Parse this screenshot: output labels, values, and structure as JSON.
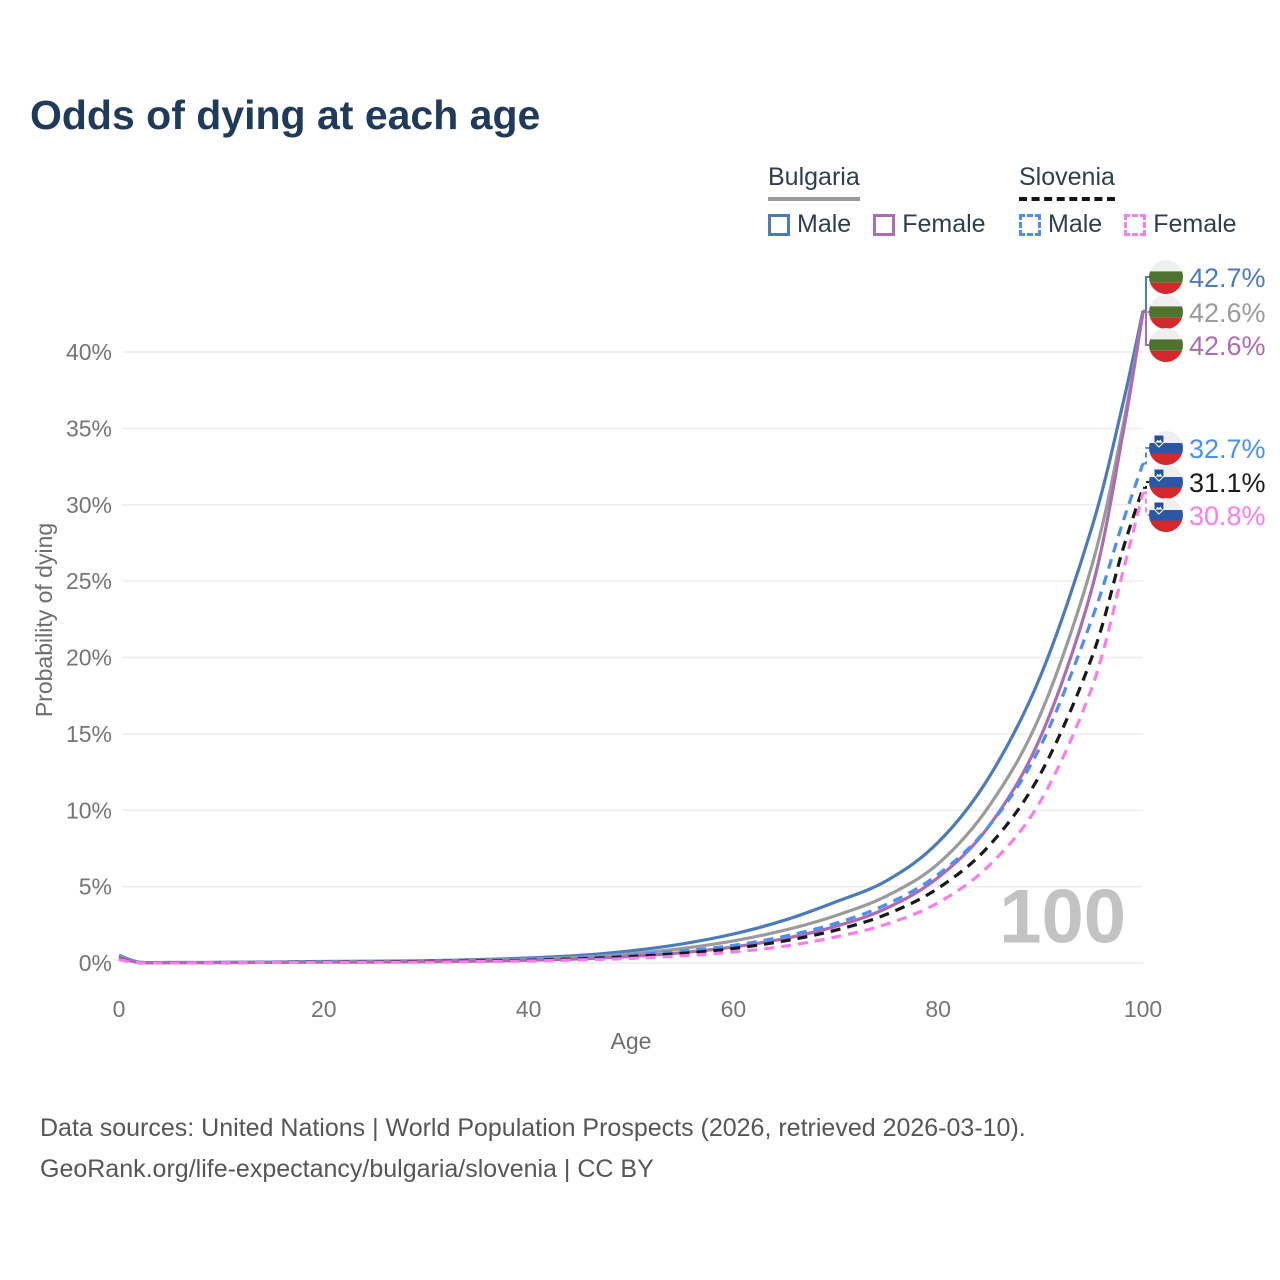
{
  "title": "Odds of dying at each age",
  "legend": {
    "groups": [
      {
        "label": "Bulgaria",
        "line_style": "solid",
        "underline_color": "#9b9b9b",
        "items": [
          {
            "label": "Male",
            "color": "#4b7bbe"
          },
          {
            "label": "Female",
            "color": "#ad6cb2"
          }
        ]
      },
      {
        "label": "Slovenia",
        "line_style": "dashed",
        "underline_color": "#141414",
        "items": [
          {
            "label": "Male",
            "color": "#4b8ff5"
          },
          {
            "label": "Female",
            "color": "#fb7de8"
          }
        ]
      }
    ]
  },
  "chart_data": {
    "type": "line",
    "title": "Odds of dying at each age",
    "xlabel": "Age",
    "ylabel": "Probability of dying",
    "xlim": [
      0,
      100
    ],
    "ylim_percent": [
      0,
      44
    ],
    "x_ticks": [
      0,
      20,
      40,
      60,
      80,
      100
    ],
    "y_ticks_percent": [
      0,
      5,
      10,
      15,
      20,
      25,
      30,
      35,
      40
    ],
    "grid": "horizontal-only",
    "legend_position": "top-right",
    "watermark": "100",
    "ages": [
      0,
      2,
      5,
      10,
      15,
      20,
      25,
      30,
      35,
      40,
      45,
      50,
      55,
      60,
      65,
      70,
      75,
      80,
      85,
      90,
      95,
      98,
      100
    ],
    "series": [
      {
        "name": "Bulgaria Male",
        "country": "Bulgaria",
        "flag": "bulgaria",
        "color": "#4b7bbe",
        "dashed": false,
        "end_label": "42.7%",
        "values_percent": [
          0.5,
          0.05,
          0.03,
          0.04,
          0.06,
          0.1,
          0.12,
          0.15,
          0.22,
          0.33,
          0.5,
          0.8,
          1.25,
          1.9,
          2.8,
          4.0,
          5.4,
          7.9,
          12.2,
          18.8,
          28.5,
          36.5,
          42.7
        ]
      },
      {
        "name": "Bulgaria",
        "country": "Bulgaria",
        "flag": "bulgaria",
        "color": "#9b9b9b",
        "dashed": false,
        "end_label": "42.6%",
        "values_percent": [
          0.42,
          0.04,
          0.03,
          0.03,
          0.05,
          0.08,
          0.1,
          0.12,
          0.17,
          0.25,
          0.38,
          0.6,
          0.95,
          1.45,
          2.15,
          3.1,
          4.4,
          6.5,
          10.3,
          16.3,
          26.0,
          35.0,
          42.6
        ]
      },
      {
        "name": "Bulgaria Female",
        "country": "Bulgaria",
        "flag": "bulgaria",
        "color": "#ad6cb2",
        "dashed": false,
        "end_label": "42.6%",
        "values_percent": [
          0.38,
          0.03,
          0.02,
          0.03,
          0.04,
          0.05,
          0.06,
          0.08,
          0.12,
          0.18,
          0.27,
          0.43,
          0.68,
          1.05,
          1.6,
          2.4,
          3.6,
          5.6,
          9.0,
          14.8,
          24.5,
          34.5,
          42.6
        ]
      },
      {
        "name": "Slovenia Male",
        "country": "Slovenia",
        "flag": "slovenia",
        "color": "#4b8ff5",
        "dashed": true,
        "end_label": "32.7%",
        "values_percent": [
          0.28,
          0.03,
          0.02,
          0.03,
          0.05,
          0.08,
          0.1,
          0.12,
          0.16,
          0.22,
          0.33,
          0.52,
          0.78,
          1.15,
          1.75,
          2.6,
          3.85,
          5.8,
          9.0,
          14.2,
          22.5,
          28.8,
          32.7
        ]
      },
      {
        "name": "Slovenia",
        "country": "Slovenia",
        "flag": "slovenia",
        "color": "#1a1a1a",
        "dashed": true,
        "end_label": "31.1%",
        "values_percent": [
          0.25,
          0.02,
          0.02,
          0.02,
          0.04,
          0.06,
          0.08,
          0.1,
          0.13,
          0.18,
          0.27,
          0.42,
          0.63,
          0.95,
          1.45,
          2.15,
          3.2,
          4.9,
          7.7,
          12.4,
          20.0,
          27.0,
          31.1
        ]
      },
      {
        "name": "Slovenia Female",
        "country": "Slovenia",
        "flag": "slovenia",
        "color": "#fb7de8",
        "dashed": true,
        "end_label": "30.8%",
        "values_percent": [
          0.22,
          0.02,
          0.01,
          0.02,
          0.03,
          0.04,
          0.05,
          0.06,
          0.09,
          0.13,
          0.2,
          0.3,
          0.47,
          0.72,
          1.1,
          1.7,
          2.55,
          3.95,
          6.4,
          10.6,
          18.0,
          25.5,
          30.8
        ]
      }
    ],
    "flag_colors": {
      "bulgaria": {
        "white": "#efefef",
        "green": "#4c742c",
        "red": "#d5282d"
      },
      "slovenia": {
        "white": "#efefef",
        "blue": "#2b57a7",
        "red": "#d5282d",
        "shield": "#234f9c"
      }
    }
  },
  "footer": {
    "line1": "Data sources: United Nations | World Population Prospects (2026, retrieved 2026-03-10).",
    "line2": "GeoRank.org/life-expectancy/bulgaria/slovenia | CC BY"
  }
}
